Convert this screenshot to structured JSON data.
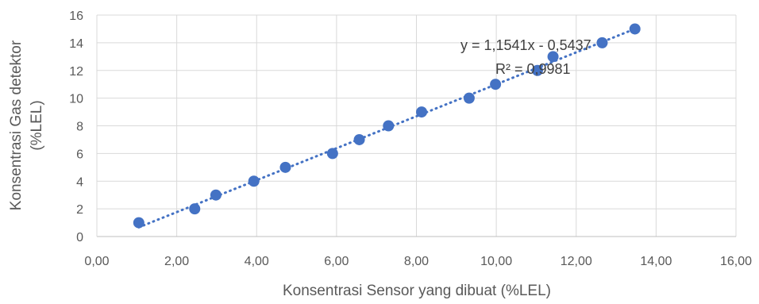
{
  "chart_data": {
    "type": "scatter",
    "title": "",
    "xlabel": "Konsentrasi Sensor yang dibuat (%LEL)",
    "ylabel_lines": [
      "Konsentrasi Gas detektor",
      "(%LEL)"
    ],
    "xlim": [
      0,
      16
    ],
    "ylim": [
      0,
      16
    ],
    "x_ticks": [
      0,
      2,
      4,
      6,
      8,
      10,
      12,
      14,
      16
    ],
    "x_tick_labels": [
      "0,00",
      "2,00",
      "4,00",
      "6,00",
      "8,00",
      "10,00",
      "12,00",
      "14,00",
      "16,00"
    ],
    "y_ticks": [
      0,
      2,
      4,
      6,
      8,
      10,
      12,
      14,
      16
    ],
    "y_tick_labels": [
      "0",
      "2",
      "4",
      "6",
      "8",
      "10",
      "12",
      "14",
      "16"
    ],
    "grid": true,
    "series": [
      {
        "marker_color": "#4472C4",
        "points": [
          {
            "x": 1.05,
            "y": 1
          },
          {
            "x": 2.45,
            "y": 2
          },
          {
            "x": 2.98,
            "y": 3
          },
          {
            "x": 3.93,
            "y": 4
          },
          {
            "x": 4.72,
            "y": 5
          },
          {
            "x": 5.9,
            "y": 6
          },
          {
            "x": 6.57,
            "y": 7
          },
          {
            "x": 7.3,
            "y": 8
          },
          {
            "x": 8.13,
            "y": 9
          },
          {
            "x": 9.32,
            "y": 10
          },
          {
            "x": 9.98,
            "y": 11
          },
          {
            "x": 11.03,
            "y": 12
          },
          {
            "x": 11.42,
            "y": 13
          },
          {
            "x": 12.65,
            "y": 14
          },
          {
            "x": 13.47,
            "y": 15
          }
        ]
      }
    ],
    "trendline": {
      "type": "linear",
      "slope": 1.1541,
      "intercept": -0.5437,
      "x_range": [
        1.05,
        13.47
      ],
      "color": "#4472C4",
      "equation_label": "y = 1,1541x - 0,5437",
      "r2_label": "R² = 0,9981"
    }
  }
}
